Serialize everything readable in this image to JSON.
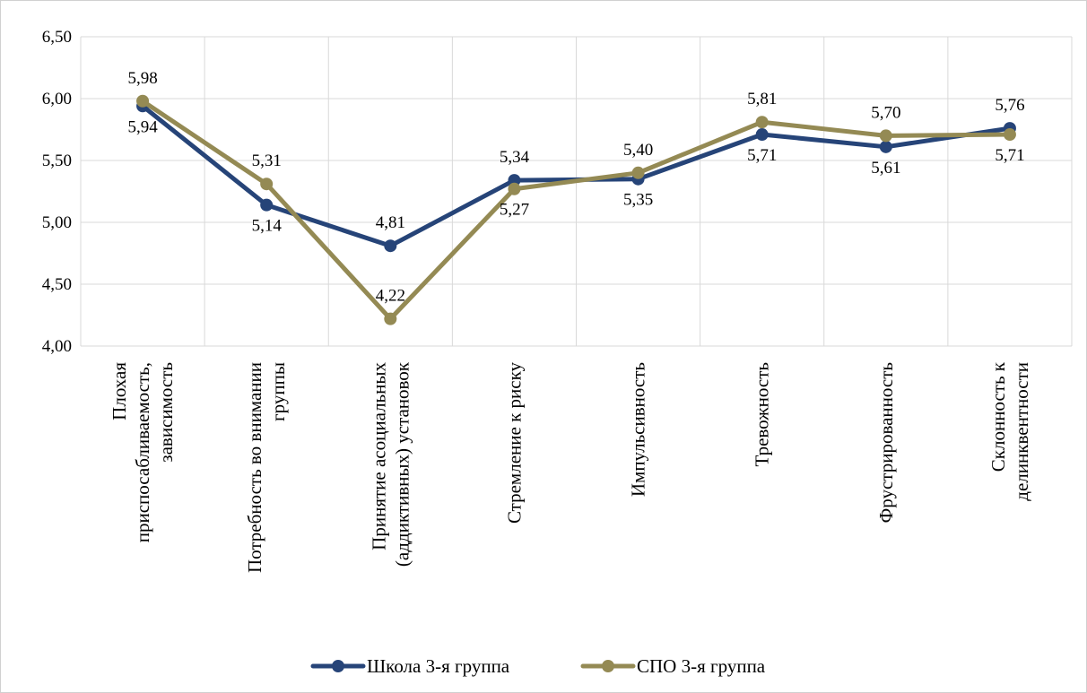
{
  "chart_data": {
    "type": "line",
    "categories": [
      [
        "Плохая",
        "приспосабливаемость,",
        "зависимость"
      ],
      [
        "Потребность во внимании",
        "группы"
      ],
      [
        "Принятие асоциальных",
        "(аддиктивных) установок"
      ],
      [
        "Стремление к риску"
      ],
      [
        "Импульсивность"
      ],
      [
        "Тревожность"
      ],
      [
        "Фрустрированность"
      ],
      [
        "Склонность к",
        "делинквентности"
      ]
    ],
    "series": [
      {
        "name": "Школа 3-я группа",
        "color": "#264478",
        "values": [
          5.94,
          5.14,
          4.81,
          5.34,
          5.35,
          5.71,
          5.61,
          5.76
        ],
        "labels": [
          "5,94",
          "5,14",
          "4,81",
          "5,34",
          "5,35",
          "5,71",
          "5,61",
          "5,76"
        ],
        "label_pos": [
          "below",
          "below",
          "above",
          "above",
          "below",
          "below",
          "below",
          "above"
        ]
      },
      {
        "name": "СПО 3-я группа",
        "color": "#948A54",
        "values": [
          5.98,
          5.31,
          4.22,
          5.27,
          5.4,
          5.81,
          5.7,
          5.71
        ],
        "labels": [
          "5,98",
          "5,31",
          "4,22",
          "5,27",
          "5,40",
          "5,81",
          "5,70",
          "5,71"
        ],
        "label_pos": [
          "above",
          "above",
          "above",
          "below",
          "above",
          "above",
          "above",
          "below"
        ]
      }
    ],
    "y_ticks": [
      "4,00",
      "4,50",
      "5,00",
      "5,50",
      "6,00",
      "6,50"
    ],
    "ylim": [
      4.0,
      6.5
    ],
    "grid": true,
    "legend_position": "bottom"
  }
}
